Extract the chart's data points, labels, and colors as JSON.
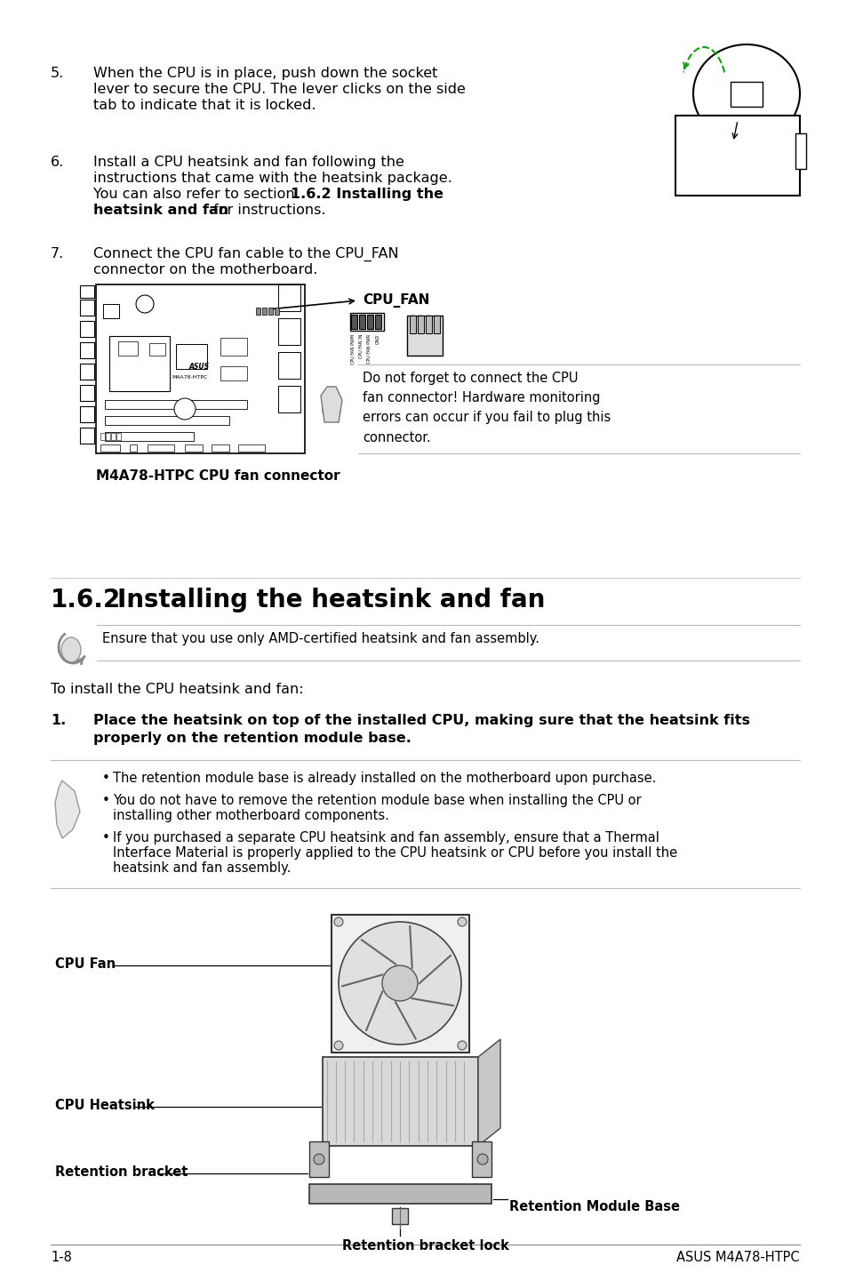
{
  "bg_color": "#ffffff",
  "footer_left": "1-8",
  "footer_right": "ASUS M4A78-HTPC",
  "lm": 57,
  "rm": 900,
  "indent": 105,
  "step5_text1": "When the CPU is in place, push down the socket",
  "step5_text2": "lever to secure the CPU. The lever clicks on the side",
  "step5_text3": "tab to indicate that it is locked.",
  "step6_text1": "Install a CPU heatsink and fan following the",
  "step6_text2": "instructions that came with the heatsink package.",
  "step6_text3": "You can also refer to section ",
  "step6_bold": "1.6.2 Installing the",
  "step6_bold2": "heatsink and fan",
  "step6_end": " for instructions.",
  "step7_text1": "Connect the CPU fan cable to the CPU_FAN",
  "step7_text2": "connector on the motherboard.",
  "mb_caption": "M4A78-HTPC CPU fan connector",
  "cpu_fan_label": "CPU_FAN",
  "warn_text": "Do not forget to connect the CPU\nfan connector! Hardware monitoring\nerrors can occur if you fail to plug this\nconnector.",
  "sec_num": "1.6.2",
  "sec_title": "Installing the heatsink and fan",
  "note1_text": "Ensure that you use only AMD-certified heatsink and fan assembly.",
  "intro_text": "To install the CPU heatsink and fan:",
  "step1_num": "1.",
  "step1_text1": "Place the heatsink on top of the installed CPU, making sure that the heatsink fits",
  "step1_text2": "properly on the retention module base.",
  "bullet1": "The retention module base is already installed on the motherboard upon purchase.",
  "bullet2a": "You do not have to remove the retention module base when installing the CPU or",
  "bullet2b": "installing other motherboard components.",
  "bullet3a": "If you purchased a separate CPU heatsink and fan assembly, ensure that a Thermal",
  "bullet3b": "Interface Material is properly applied to the CPU heatsink or CPU before you install the",
  "bullet3c": "heatsink and fan assembly.",
  "lbl_cpufan": "CPU Fan",
  "lbl_cpuhs": "CPU Heatsink",
  "lbl_retbr": "Retention bracket",
  "lbl_retmod": "Retention Module Base",
  "lbl_retlock": "Retention bracket lock",
  "font_size_body": 11.5,
  "font_size_caption": 11,
  "font_size_sec": 20
}
